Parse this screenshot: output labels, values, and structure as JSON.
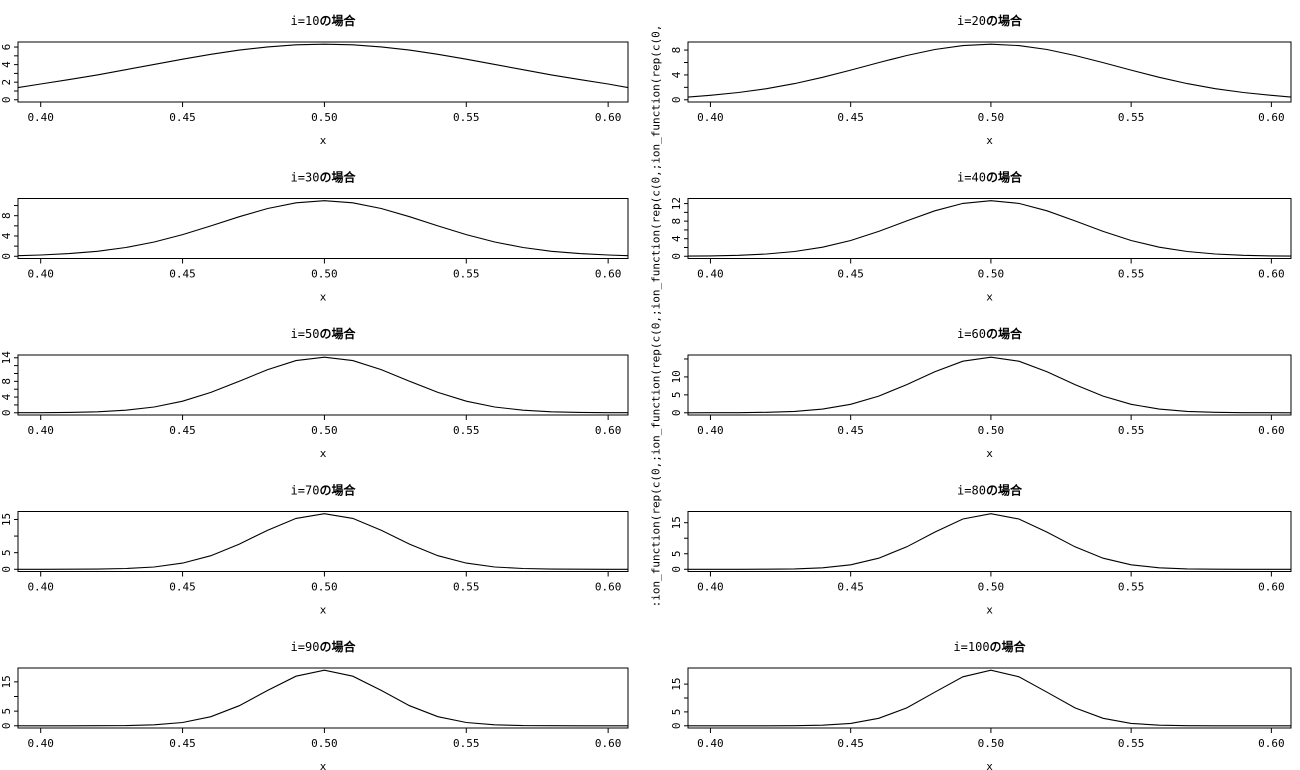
{
  "chart_data": {
    "type": "line",
    "ylabel": ":ion_function(rep(c(0,;ion_function(rep(c(0,;ion_function(rep(c(0,;ion_function(rep(c(0,",
    "xlabel": "x",
    "xlim": [
      0.392,
      0.607
    ],
    "x_ticks": [
      0.4,
      0.45,
      0.5,
      0.55,
      0.6
    ],
    "x_tick_labels": [
      "0.40",
      "0.45",
      "0.50",
      "0.55",
      "0.60"
    ],
    "x": [
      0.39,
      0.4,
      0.41,
      0.42,
      0.43,
      0.44,
      0.45,
      0.46,
      0.47,
      0.48,
      0.49,
      0.5,
      0.51,
      0.52,
      0.53,
      0.54,
      0.55,
      0.56,
      0.57,
      0.58,
      0.59,
      0.6,
      0.61
    ],
    "panels": [
      {
        "title_prefix": "i=10",
        "title_suffix": "の場合",
        "ymax": 6.32,
        "y_ticks": [
          0,
          1,
          2,
          3,
          4,
          5,
          6
        ],
        "y_tick_labels": [
          "0",
          "2",
          "4",
          "6"
        ],
        "y_label_values": [
          0,
          2,
          4,
          6
        ],
        "y": [
          1.38,
          1.8,
          2.29,
          2.83,
          3.42,
          4.02,
          4.62,
          5.17,
          5.65,
          6.01,
          6.25,
          6.32,
          6.25,
          6.01,
          5.65,
          5.17,
          4.62,
          4.02,
          3.42,
          2.83,
          2.29,
          1.8,
          1.38
        ]
      },
      {
        "title_prefix": "i=20",
        "title_suffix": "の場合",
        "ymax": 8.94,
        "y_ticks": [
          0,
          2,
          4,
          6,
          8
        ],
        "y_tick_labels": [
          "0",
          "4",
          "8"
        ],
        "y_label_values": [
          0,
          4,
          8
        ],
        "y": [
          0.43,
          0.72,
          1.17,
          1.79,
          2.61,
          3.62,
          4.77,
          5.98,
          7.13,
          8.09,
          8.72,
          8.94,
          8.72,
          8.09,
          7.13,
          5.98,
          4.77,
          3.62,
          2.61,
          1.79,
          1.17,
          0.72,
          0.43
        ]
      },
      {
        "title_prefix": "i=30",
        "title_suffix": "の場合",
        "ymax": 10.95,
        "y_ticks": [
          0,
          2,
          4,
          6,
          8,
          10
        ],
        "y_tick_labels": [
          "0",
          "4",
          "8"
        ],
        "y_label_values": [
          0,
          4,
          8
        ],
        "y": [
          0.11,
          0.25,
          0.52,
          0.98,
          1.73,
          2.82,
          4.27,
          5.99,
          7.8,
          9.42,
          10.55,
          10.95,
          10.55,
          9.42,
          7.8,
          5.99,
          4.27,
          2.82,
          1.73,
          0.98,
          0.52,
          0.25,
          0.11
        ]
      },
      {
        "title_prefix": "i=40",
        "title_suffix": "の場合",
        "ymax": 12.65,
        "y_ticks": [
          0,
          2,
          4,
          6,
          8,
          10,
          12
        ],
        "y_tick_labels": [
          "0",
          "4",
          "8",
          "12"
        ],
        "y_label_values": [
          0,
          4,
          8,
          12
        ],
        "y": [
          0.03,
          0.08,
          0.22,
          0.51,
          1.08,
          2.07,
          3.6,
          5.66,
          8.05,
          10.35,
          12.03,
          12.65,
          12.03,
          10.35,
          8.05,
          5.66,
          3.6,
          2.07,
          1.08,
          0.51,
          0.22,
          0.08,
          0.03
        ]
      },
      {
        "title_prefix": "i=50",
        "title_suffix": "の場合",
        "ymax": 14.14,
        "y_ticks": [
          0,
          2,
          4,
          6,
          8,
          10,
          12,
          14
        ],
        "y_tick_labels": [
          "0",
          "4",
          "8",
          "14"
        ],
        "y_label_values": [
          0,
          4,
          8,
          14
        ],
        "y": [
          0.01,
          0.03,
          0.09,
          0.25,
          0.65,
          1.47,
          2.94,
          5.18,
          8.03,
          11.0,
          13.28,
          14.14,
          13.28,
          11.0,
          8.03,
          5.18,
          2.94,
          1.47,
          0.65,
          0.25,
          0.09,
          0.03,
          0.01
        ]
      },
      {
        "title_prefix": "i=60",
        "title_suffix": "の場合",
        "ymax": 15.49,
        "y_ticks": [
          0,
          5,
          10,
          15
        ],
        "y_tick_labels": [
          "0",
          "5",
          "10"
        ],
        "y_label_values": [
          0,
          5,
          10
        ],
        "y": [
          0,
          0.01,
          0.03,
          0.12,
          0.39,
          1.03,
          2.35,
          4.64,
          7.86,
          11.46,
          14.37,
          15.49,
          14.37,
          11.46,
          7.86,
          4.64,
          2.35,
          1.03,
          0.39,
          0.12,
          0.03,
          0.01,
          0
        ]
      },
      {
        "title_prefix": "i=70",
        "title_suffix": "の場合",
        "ymax": 16.73,
        "y_ticks": [
          0,
          5,
          10,
          15
        ],
        "y_tick_labels": [
          "0",
          "5",
          "15"
        ],
        "y_label_values": [
          0,
          5,
          15
        ],
        "y": [
          0,
          0,
          0.01,
          0.06,
          0.22,
          0.7,
          1.86,
          4.1,
          7.58,
          11.77,
          15.32,
          16.73,
          15.32,
          11.77,
          7.58,
          4.1,
          1.86,
          0.7,
          0.22,
          0.06,
          0.01,
          0,
          0
        ]
      },
      {
        "title_prefix": "i=80",
        "title_suffix": "の場合",
        "ymax": 17.89,
        "y_ticks": [
          0,
          5,
          10,
          15
        ],
        "y_tick_labels": [
          "0",
          "5",
          "15"
        ],
        "y_label_values": [
          0,
          5,
          15
        ],
        "y": [
          0,
          0,
          0,
          0.03,
          0.13,
          0.48,
          1.45,
          3.58,
          7.24,
          11.97,
          16.18,
          17.89,
          16.18,
          11.97,
          7.24,
          3.58,
          1.45,
          0.48,
          0.13,
          0.03,
          0,
          0,
          0
        ]
      },
      {
        "title_prefix": "i=90",
        "title_suffix": "の場合",
        "ymax": 18.97,
        "y_ticks": [
          0,
          5,
          10,
          15
        ],
        "y_tick_labels": [
          "0",
          "5",
          "15"
        ],
        "y_label_values": [
          0,
          5,
          15
        ],
        "y": [
          0,
          0,
          0,
          0.01,
          0.07,
          0.32,
          1.12,
          3.11,
          6.86,
          12.07,
          16.94,
          18.97,
          16.94,
          12.07,
          6.86,
          3.11,
          1.12,
          0.32,
          0.07,
          0.01,
          0,
          0,
          0
        ]
      },
      {
        "title_prefix": "i=100",
        "title_suffix": "の場合",
        "ymax": 20.0,
        "y_ticks": [
          0,
          5,
          10,
          15
        ],
        "y_tick_labels": [
          "0",
          "5",
          "15"
        ],
        "y_label_values": [
          0,
          5,
          15
        ],
        "y": [
          0,
          0,
          0,
          0,
          0.04,
          0.22,
          0.86,
          2.68,
          6.45,
          12.1,
          17.64,
          20.0,
          17.64,
          12.1,
          6.45,
          2.68,
          0.86,
          0.22,
          0.04,
          0,
          0,
          0,
          0
        ]
      }
    ]
  }
}
